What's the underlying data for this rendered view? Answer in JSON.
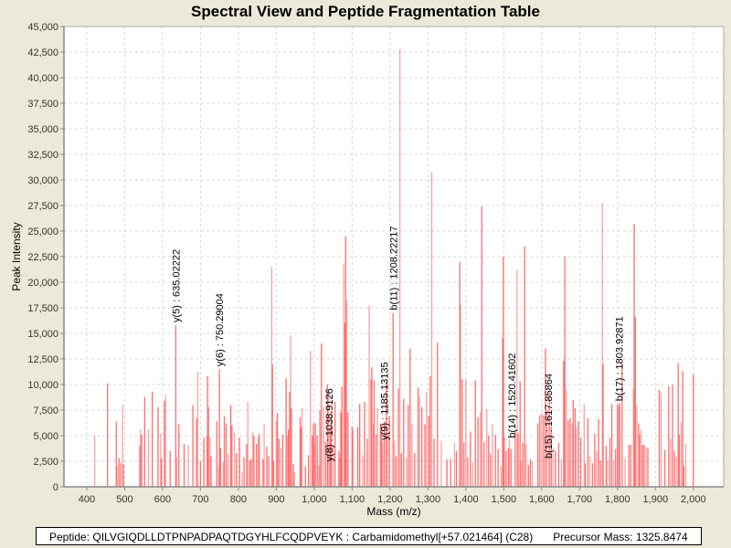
{
  "chart_data": {
    "type": "bar",
    "title": "Spectral View and Peptide Fragmentation Table",
    "xlabel": "Mass (m/z)",
    "ylabel": "Peak Intensity",
    "xlim": [
      340,
      2080
    ],
    "ylim": [
      0,
      45000
    ],
    "grid": true,
    "bar_color": "#ff5555",
    "x_ticks": [
      "400",
      "500",
      "600",
      "700",
      "800",
      "900",
      "1,000",
      "1,100",
      "1,200",
      "1,300",
      "1,400",
      "1,500",
      "1,600",
      "1,700",
      "1,800",
      "1,900",
      "2,000"
    ],
    "x_tick_values": [
      400,
      500,
      600,
      700,
      800,
      900,
      1000,
      1100,
      1200,
      1300,
      1400,
      1500,
      1600,
      1700,
      1800,
      1900,
      2000
    ],
    "y_ticks": [
      "0",
      "2,500",
      "5,000",
      "7,500",
      "10,000",
      "12,500",
      "15,000",
      "17,500",
      "20,000",
      "22,500",
      "25,000",
      "27,500",
      "30,000",
      "32,500",
      "35,000",
      "37,500",
      "40,000",
      "42,500",
      "45,000"
    ],
    "y_tick_values": [
      0,
      2500,
      5000,
      7500,
      10000,
      12500,
      15000,
      17500,
      20000,
      22500,
      25000,
      27500,
      30000,
      32500,
      35000,
      37500,
      40000,
      42500,
      45000
    ],
    "peaks": [
      [
        421,
        5000
      ],
      [
        455,
        10100
      ],
      [
        478,
        6400
      ],
      [
        480,
        2000
      ],
      [
        485,
        2800
      ],
      [
        490,
        2300
      ],
      [
        495,
        8000
      ],
      [
        497,
        2200
      ],
      [
        540,
        4000
      ],
      [
        542,
        5600
      ],
      [
        545,
        5100
      ],
      [
        553,
        8800
      ],
      [
        563,
        5600
      ],
      [
        573,
        9300
      ],
      [
        588,
        7800
      ],
      [
        595,
        5200
      ],
      [
        597,
        2800
      ],
      [
        605,
        8400
      ],
      [
        608,
        9000
      ],
      [
        620,
        3500
      ],
      [
        635,
        15800
      ],
      [
        637,
        2900
      ],
      [
        643,
        6100
      ],
      [
        657,
        4200
      ],
      [
        668,
        4100
      ],
      [
        680,
        8000
      ],
      [
        690,
        6700
      ],
      [
        693,
        11200
      ],
      [
        700,
        2500
      ],
      [
        709,
        4800
      ],
      [
        717,
        4900
      ],
      [
        719,
        10800
      ],
      [
        721,
        7800
      ],
      [
        725,
        4900
      ],
      [
        728,
        3000
      ],
      [
        743,
        6400
      ],
      [
        748,
        2000
      ],
      [
        750,
        11500
      ],
      [
        753,
        3800
      ],
      [
        760,
        2400
      ],
      [
        763,
        6900
      ],
      [
        768,
        6200
      ],
      [
        773,
        3200
      ],
      [
        780,
        8000
      ],
      [
        783,
        6000
      ],
      [
        790,
        5300
      ],
      [
        795,
        3300
      ],
      [
        803,
        4800
      ],
      [
        810,
        1400
      ],
      [
        815,
        2900
      ],
      [
        822,
        4200
      ],
      [
        825,
        8300
      ],
      [
        830,
        2600
      ],
      [
        834,
        2700
      ],
      [
        838,
        5400
      ],
      [
        841,
        5000
      ],
      [
        848,
        4200
      ],
      [
        852,
        4800
      ],
      [
        855,
        5200
      ],
      [
        865,
        2700
      ],
      [
        868,
        6100
      ],
      [
        875,
        3900
      ],
      [
        880,
        3000
      ],
      [
        888,
        21500
      ],
      [
        890,
        12000
      ],
      [
        893,
        2500
      ],
      [
        900,
        6400
      ],
      [
        903,
        7200
      ],
      [
        907,
        4700
      ],
      [
        912,
        3800
      ],
      [
        917,
        5100
      ],
      [
        926,
        10600
      ],
      [
        929,
        5000
      ],
      [
        932,
        5600
      ],
      [
        935,
        9300
      ],
      [
        938,
        14800
      ],
      [
        940,
        7700
      ],
      [
        945,
        2200
      ],
      [
        948,
        1400
      ],
      [
        963,
        6800
      ],
      [
        965,
        5800
      ],
      [
        968,
        7700
      ],
      [
        977,
        2000
      ],
      [
        985,
        3100
      ],
      [
        990,
        13300
      ],
      [
        995,
        5000
      ],
      [
        998,
        6200
      ],
      [
        1000,
        4200
      ],
      [
        1003,
        6200
      ],
      [
        1008,
        5000
      ],
      [
        1012,
        2100
      ],
      [
        1015,
        7500
      ],
      [
        1019,
        14000
      ],
      [
        1025,
        7800
      ],
      [
        1030,
        4400
      ],
      [
        1035,
        10000
      ],
      [
        1038,
        9500
      ],
      [
        1042,
        5800
      ],
      [
        1045,
        7400
      ],
      [
        1050,
        4100
      ],
      [
        1055,
        8300
      ],
      [
        1065,
        3500
      ],
      [
        1068,
        2900
      ],
      [
        1070,
        7300
      ],
      [
        1073,
        9800
      ],
      [
        1078,
        21800
      ],
      [
        1081,
        16000
      ],
      [
        1083,
        24500
      ],
      [
        1086,
        18200
      ],
      [
        1089,
        7300
      ],
      [
        1100,
        5900
      ],
      [
        1103,
        5500
      ],
      [
        1115,
        5800
      ],
      [
        1120,
        8100
      ],
      [
        1128,
        3100
      ],
      [
        1133,
        8300
      ],
      [
        1140,
        4700
      ],
      [
        1145,
        17700
      ],
      [
        1150,
        10500
      ],
      [
        1152,
        11700
      ],
      [
        1156,
        6200
      ],
      [
        1158,
        10400
      ],
      [
        1163,
        5100
      ],
      [
        1167,
        7700
      ],
      [
        1175,
        6200
      ],
      [
        1178,
        5900
      ],
      [
        1181,
        4300
      ],
      [
        1185,
        6400
      ],
      [
        1190,
        10300
      ],
      [
        1193,
        5100
      ],
      [
        1198,
        6900
      ],
      [
        1208,
        17000
      ],
      [
        1212,
        4500
      ],
      [
        1216,
        3000
      ],
      [
        1222,
        9600
      ],
      [
        1226,
        42800
      ],
      [
        1230,
        3300
      ],
      [
        1236,
        8600
      ],
      [
        1243,
        2800
      ],
      [
        1248,
        8000
      ],
      [
        1253,
        13500
      ],
      [
        1258,
        6200
      ],
      [
        1265,
        3300
      ],
      [
        1274,
        9700
      ],
      [
        1278,
        8800
      ],
      [
        1284,
        7800
      ],
      [
        1292,
        6100
      ],
      [
        1296,
        9300
      ],
      [
        1302,
        6900
      ],
      [
        1306,
        10800
      ],
      [
        1310,
        30800
      ],
      [
        1316,
        4700
      ],
      [
        1325,
        14100
      ],
      [
        1335,
        4500
      ],
      [
        1350,
        2700
      ],
      [
        1360,
        2700
      ],
      [
        1370,
        4300
      ],
      [
        1375,
        3500
      ],
      [
        1384,
        22000
      ],
      [
        1386,
        17800
      ],
      [
        1390,
        10500
      ],
      [
        1395,
        4300
      ],
      [
        1400,
        10500
      ],
      [
        1405,
        2900
      ],
      [
        1412,
        5400
      ],
      [
        1418,
        2400
      ],
      [
        1425,
        10400
      ],
      [
        1432,
        6800
      ],
      [
        1438,
        7300
      ],
      [
        1442,
        27400
      ],
      [
        1448,
        4400
      ],
      [
        1455,
        7600
      ],
      [
        1460,
        5000
      ],
      [
        1465,
        3200
      ],
      [
        1470,
        6100
      ],
      [
        1478,
        5100
      ],
      [
        1485,
        3700
      ],
      [
        1493,
        2000
      ],
      [
        1497,
        14500
      ],
      [
        1499,
        22500
      ],
      [
        1502,
        4800
      ],
      [
        1506,
        3500
      ],
      [
        1512,
        3800
      ],
      [
        1515,
        4600
      ],
      [
        1519,
        3700
      ],
      [
        1530,
        5400
      ],
      [
        1535,
        21200
      ],
      [
        1538,
        5200
      ],
      [
        1543,
        10300
      ],
      [
        1546,
        2500
      ],
      [
        1550,
        4300
      ],
      [
        1555,
        23500
      ],
      [
        1559,
        4200
      ],
      [
        1565,
        2100
      ],
      [
        1570,
        2700
      ],
      [
        1575,
        2500
      ],
      [
        1590,
        6200
      ],
      [
        1595,
        7000
      ],
      [
        1600,
        7200
      ],
      [
        1605,
        7000
      ],
      [
        1610,
        13500
      ],
      [
        1614,
        7500
      ],
      [
        1620,
        9200
      ],
      [
        1625,
        5900
      ],
      [
        1630,
        3400
      ],
      [
        1636,
        3500
      ],
      [
        1645,
        4300
      ],
      [
        1652,
        2700
      ],
      [
        1658,
        12300
      ],
      [
        1661,
        22500
      ],
      [
        1665,
        9500
      ],
      [
        1670,
        6500
      ],
      [
        1675,
        6700
      ],
      [
        1680,
        6200
      ],
      [
        1683,
        8500
      ],
      [
        1688,
        7700
      ],
      [
        1692,
        5800
      ],
      [
        1697,
        6400
      ],
      [
        1703,
        4800
      ],
      [
        1712,
        8100
      ],
      [
        1715,
        2300
      ],
      [
        1722,
        6700
      ],
      [
        1727,
        3000
      ],
      [
        1734,
        2300
      ],
      [
        1740,
        5200
      ],
      [
        1745,
        3500
      ],
      [
        1750,
        6600
      ],
      [
        1755,
        2600
      ],
      [
        1760,
        27800
      ],
      [
        1762,
        12000
      ],
      [
        1770,
        4000
      ],
      [
        1774,
        2500
      ],
      [
        1780,
        4800
      ],
      [
        1785,
        8100
      ],
      [
        1790,
        2500
      ],
      [
        1795,
        3700
      ],
      [
        1800,
        8100
      ],
      [
        1803,
        7900
      ],
      [
        1806,
        8200
      ],
      [
        1812,
        12100
      ],
      [
        1820,
        2800
      ],
      [
        1830,
        4100
      ],
      [
        1835,
        4100
      ],
      [
        1842,
        9600
      ],
      [
        1844,
        25700
      ],
      [
        1847,
        16600
      ],
      [
        1851,
        8000
      ],
      [
        1856,
        6200
      ],
      [
        1858,
        5100
      ],
      [
        1862,
        5600
      ],
      [
        1866,
        4100
      ],
      [
        1870,
        4100
      ],
      [
        1875,
        3900
      ],
      [
        1880,
        3800
      ],
      [
        1910,
        9500
      ],
      [
        1915,
        9200
      ],
      [
        1925,
        3600
      ],
      [
        1935,
        9800
      ],
      [
        1940,
        4700
      ],
      [
        1945,
        10000
      ],
      [
        1950,
        3500
      ],
      [
        1955,
        2900
      ],
      [
        1960,
        12100
      ],
      [
        1963,
        5100
      ],
      [
        1968,
        6300
      ],
      [
        1972,
        11300
      ],
      [
        1975,
        2000
      ],
      [
        1980,
        4200
      ],
      [
        2000,
        11000
      ]
    ],
    "annotations": [
      {
        "label": "y(5) : 635.02222",
        "x": 635.02222,
        "y": 15800
      },
      {
        "label": "y(6) : 750.29004",
        "x": 750.29004,
        "y": 11500
      },
      {
        "label": "y(8) : 1038.9126",
        "x": 1038.9126,
        "y": 2200
      },
      {
        "label": "y(9) : 1185.13135",
        "x": 1185.13135,
        "y": 4300
      },
      {
        "label": "b(11) : 1208.22217",
        "x": 1208.22217,
        "y": 17000
      },
      {
        "label": "b(14) : 1520.41602",
        "x": 1520.41602,
        "y": 4500
      },
      {
        "label": "b(15) : 1617.85864",
        "x": 1617.85864,
        "y": 2500
      },
      {
        "label": "b(17) : 1803.92871",
        "x": 1803.92871,
        "y": 8100
      }
    ]
  },
  "footer": {
    "peptide": "Peptide: QILVGIQDLLDTPNPADPAQTDGYHLFCQDPVEYK : Carbamidomethyl[+57.021464] (C28)",
    "precursor": "Precursor Mass: 1325.8474"
  }
}
